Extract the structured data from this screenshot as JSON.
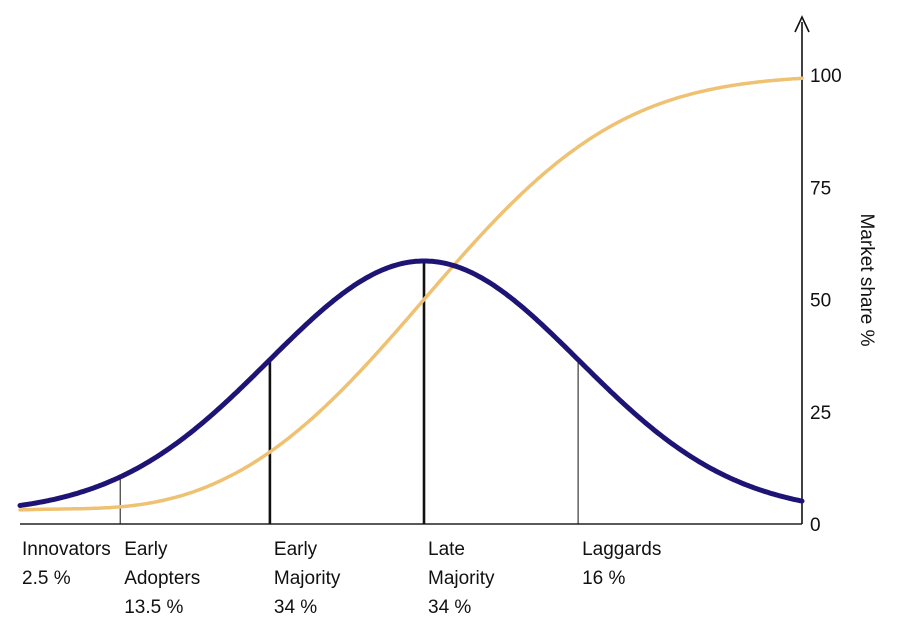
{
  "chart_data": {
    "type": "line",
    "title": "",
    "xlabel": "",
    "ylabel": "Market share %",
    "ylim": [
      0,
      100
    ],
    "y_ticks": [
      "0",
      "25",
      "50",
      "75",
      "100"
    ],
    "y_tick_values": [
      0,
      25,
      50,
      75,
      100
    ],
    "axis_side": "right",
    "grid": false,
    "legend": "none",
    "series": [
      {
        "name": "",
        "kind": "adoption-bell-curve",
        "color": "#1e1475"
      },
      {
        "name": "",
        "kind": "cumulative-s-curve",
        "color": "#efc273"
      }
    ],
    "segments": [
      {
        "line1": "Innovators",
        "line2": "2.5 %",
        "line3": "",
        "share": 2.5
      },
      {
        "line1": "Early",
        "line2": "Adopters",
        "line3": "13.5 %",
        "share": 13.5
      },
      {
        "line1": "Early",
        "line2": "Majority",
        "line3": "34 %",
        "share": 34
      },
      {
        "line1": "Late",
        "line2": "Majority",
        "line3": "34 %",
        "share": 34
      },
      {
        "line1": "Laggards",
        "line2": "16 %",
        "line3": "",
        "share": 16
      }
    ]
  }
}
